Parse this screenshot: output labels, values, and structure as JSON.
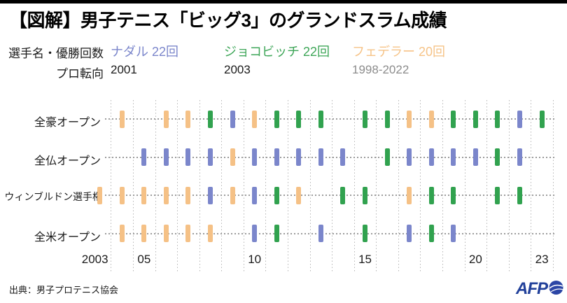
{
  "header": {
    "title": "【図解】男子テニス「ビッグ3」のグランドスラム成績"
  },
  "legend": {
    "row1_label": "選手名・優勝回数",
    "row2_label": "プロ転向",
    "players": [
      {
        "id": "nadal",
        "name": "ナダル",
        "wins": "22回",
        "label": "ナダル 22回",
        "turned_pro": "2001",
        "color": "#7b86cb",
        "turned_pro_color": "#1a1a1a"
      },
      {
        "id": "djokovic",
        "name": "ジョコビッチ",
        "wins": "22回",
        "label": "ジョコビッチ 22回",
        "turned_pro": "2003",
        "color": "#3ea658",
        "turned_pro_color": "#1a1a1a"
      },
      {
        "id": "federer",
        "name": "フェデラー",
        "wins": "20回",
        "label": "フェデラー 20回",
        "turned_pro": "1998-2022",
        "color": "#f6c387",
        "turned_pro_color": "#8c8c8c"
      }
    ]
  },
  "chart_data": {
    "type": "scatter",
    "title": "【図解】男子テニス「ビッグ3」のグランドスラム成績",
    "description": "Timeline of Grand Slam titles won by the Big 3, one colored tick per title, by tournament row and year",
    "rows": [
      "全豪オープン",
      "全仏オープン",
      "ウィンブルドン選手権",
      "全米オープン"
    ],
    "x_axis": {
      "min": 2003,
      "max": 2023,
      "ticks": [
        {
          "label": "2003",
          "year": 2003
        },
        {
          "label": "05",
          "year": 2005
        },
        {
          "label": "10",
          "year": 2010
        },
        {
          "label": "15",
          "year": 2015
        },
        {
          "label": "20",
          "year": 2020
        },
        {
          "label": "23",
          "year": 2023
        }
      ]
    },
    "grid": {
      "vertical_lines_at_year_boundaries": true,
      "vertical_color": "#b5b5b5",
      "baseline_color": "#9c9c9c"
    },
    "series": [
      {
        "id": "nadal",
        "name": "ナダル",
        "color": "#7b86cb",
        "total": 22,
        "wins": [
          {
            "row": "全豪オープン",
            "years": [
              2009,
              2022
            ]
          },
          {
            "row": "全仏オープン",
            "years": [
              2005,
              2006,
              2007,
              2008,
              2010,
              2011,
              2012,
              2013,
              2014,
              2017,
              2018,
              2019,
              2020,
              2022
            ]
          },
          {
            "row": "ウィンブルドン選手権",
            "years": [
              2008,
              2010
            ]
          },
          {
            "row": "全米オープン",
            "years": [
              2010,
              2013,
              2017,
              2019
            ]
          }
        ]
      },
      {
        "id": "djokovic",
        "name": "ジョコビッチ",
        "color": "#31a24f",
        "total": 22,
        "wins": [
          {
            "row": "全豪オープン",
            "years": [
              2008,
              2011,
              2012,
              2013,
              2015,
              2016,
              2019,
              2020,
              2021,
              2023
            ]
          },
          {
            "row": "全仏オープン",
            "years": [
              2016,
              2021
            ]
          },
          {
            "row": "ウィンブルドン選手権",
            "years": [
              2011,
              2014,
              2015,
              2018,
              2019,
              2021,
              2022
            ]
          },
          {
            "row": "全米オープン",
            "years": [
              2011,
              2015,
              2018
            ]
          }
        ]
      },
      {
        "id": "federer",
        "name": "フェデラー",
        "color": "#f5c186",
        "total": 20,
        "wins": [
          {
            "row": "全豪オープン",
            "years": [
              2004,
              2006,
              2007,
              2010,
              2017,
              2018
            ]
          },
          {
            "row": "全仏オープン",
            "years": [
              2009
            ]
          },
          {
            "row": "ウィンブルドン選手権",
            "years": [
              2003,
              2004,
              2005,
              2006,
              2007,
              2009,
              2012,
              2017
            ]
          },
          {
            "row": "全米オープン",
            "years": [
              2004,
              2005,
              2006,
              2007,
              2008
            ]
          }
        ]
      }
    ]
  },
  "footer": {
    "source": "出典：男子プロテニス協会",
    "logo_text": "AFP"
  }
}
